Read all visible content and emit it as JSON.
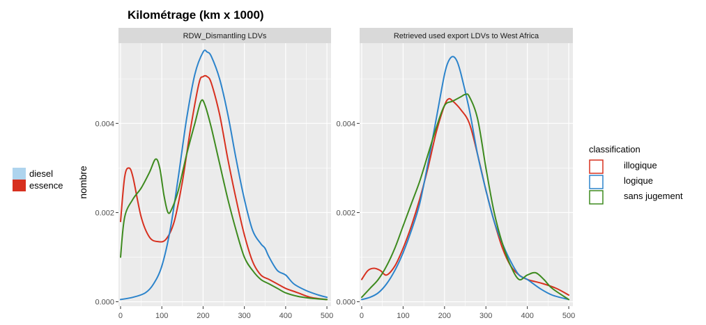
{
  "chart_data": {
    "type": "line",
    "title": "Kilométrage (km x 1000)",
    "ylabel": "nombre",
    "xlabel": "",
    "xlim": [
      -5,
      510
    ],
    "x_ticks": [
      0,
      100,
      200,
      300,
      400,
      500
    ],
    "x_tick_labels": [
      "0",
      "100",
      "200",
      "300",
      "400",
      "500"
    ],
    "grid": true,
    "colors": {
      "illogique": "#d7301f",
      "logique": "#2b83cb",
      "sans jugement": "#3d8a1e",
      "panel_bg": "#ebebeb",
      "strip_bg": "#d9d9d9",
      "grid": "#ffffff",
      "diesel": "#aed4ee",
      "essence": "#d7301f"
    },
    "fill_legend": {
      "items": [
        {
          "label": "diesel",
          "color": "#aed4ee"
        },
        {
          "label": "essence",
          "color": "#d7301f"
        }
      ]
    },
    "color_legend": {
      "title": "classification",
      "placement": "right",
      "items": [
        {
          "label": "illogique",
          "color": "#d7301f"
        },
        {
          "label": "logique",
          "color": "#2b83cb"
        },
        {
          "label": "sans jugement",
          "color": "#3d8a1e"
        }
      ]
    },
    "panels": [
      {
        "strip": "RDW_Dismantling LDVs",
        "ylim": [
          -0.0001,
          0.0058
        ],
        "y_ticks": [
          0,
          0.002,
          0.004
        ],
        "y_tick_labels": [
          "0.000",
          "0.002",
          "0.004"
        ],
        "series": [
          {
            "name": "illogique",
            "x": [
              0,
              10,
              20,
              30,
              50,
              70,
              90,
              110,
              130,
              150,
              170,
              190,
              200,
              210,
              220,
              240,
              260,
              280,
              300,
              320,
              340,
              360,
              380,
              400,
              430,
              460,
              500
            ],
            "y": [
              0.0018,
              0.0028,
              0.003,
              0.0028,
              0.0019,
              0.00145,
              0.00135,
              0.0014,
              0.0018,
              0.0027,
              0.0039,
              0.0049,
              0.00505,
              0.00505,
              0.0049,
              0.0042,
              0.0032,
              0.0023,
              0.0015,
              0.0009,
              0.0006,
              0.0005,
              0.0004,
              0.0003,
              0.0002,
              0.0001,
              5e-05
            ]
          },
          {
            "name": "logique",
            "x": [
              0,
              30,
              60,
              80,
              100,
              120,
              140,
              160,
              180,
              200,
              210,
              220,
              240,
              260,
              280,
              300,
              320,
              340,
              350,
              360,
              380,
              400,
              420,
              450,
              480,
              500
            ],
            "y": [
              5e-05,
              0.0001,
              0.0002,
              0.0004,
              0.0008,
              0.0016,
              0.0028,
              0.0041,
              0.0051,
              0.0056,
              0.0056,
              0.0055,
              0.005,
              0.0042,
              0.0032,
              0.0023,
              0.0016,
              0.0013,
              0.0012,
              0.001,
              0.0007,
              0.0006,
              0.0004,
              0.00025,
              0.00015,
              0.0001
            ]
          },
          {
            "name": "sans jugement",
            "x": [
              0,
              10,
              30,
              50,
              70,
              85,
              95,
              105,
              115,
              125,
              140,
              160,
              180,
              195,
              205,
              220,
              240,
              260,
              280,
              300,
              320,
              340,
              360,
              380,
              400,
              430,
              460,
              500
            ],
            "y": [
              0.001,
              0.0019,
              0.0023,
              0.00255,
              0.0029,
              0.0032,
              0.003,
              0.0024,
              0.002,
              0.0021,
              0.0025,
              0.0033,
              0.004,
              0.0045,
              0.0044,
              0.0039,
              0.0031,
              0.0023,
              0.0016,
              0.001,
              0.0007,
              0.0005,
              0.0004,
              0.0003,
              0.0002,
              0.00012,
              8e-05,
              5e-05
            ]
          }
        ]
      },
      {
        "strip": "Retrieved used export LDVs to West Africa",
        "ylim": [
          -0.0001,
          0.0058
        ],
        "y_ticks": [
          0,
          0.002,
          0.004
        ],
        "y_tick_labels": [
          "0.000",
          "0.002",
          "0.004"
        ],
        "series": [
          {
            "name": "illogique",
            "x": [
              0,
              15,
              30,
              45,
              60,
              80,
              100,
              120,
              140,
              160,
              180,
              200,
              210,
              220,
              240,
              260,
              280,
              300,
              320,
              340,
              360,
              380,
              400,
              420,
              440,
              470,
              500
            ],
            "y": [
              0.0005,
              0.0007,
              0.00075,
              0.0007,
              0.0006,
              0.0008,
              0.0012,
              0.0017,
              0.0023,
              0.003,
              0.0038,
              0.0044,
              0.00455,
              0.0045,
              0.0043,
              0.004,
              0.0033,
              0.0025,
              0.0018,
              0.0012,
              0.0008,
              0.0006,
              0.0005,
              0.00045,
              0.0004,
              0.0003,
              0.00015
            ]
          },
          {
            "name": "logique",
            "x": [
              0,
              20,
              40,
              60,
              80,
              100,
              120,
              140,
              160,
              180,
              200,
              210,
              220,
              230,
              240,
              260,
              280,
              300,
              320,
              340,
              360,
              380,
              400,
              430,
              460,
              500
            ],
            "y": [
              5e-05,
              0.0001,
              0.0002,
              0.0004,
              0.0007,
              0.0011,
              0.0016,
              0.0022,
              0.0031,
              0.0041,
              0.0051,
              0.0054,
              0.0055,
              0.0054,
              0.0051,
              0.0043,
              0.0033,
              0.0025,
              0.0018,
              0.0013,
              0.0009,
              0.0006,
              0.0005,
              0.0003,
              0.00015,
              5e-05
            ]
          },
          {
            "name": "sans jugement",
            "x": [
              0,
              20,
              40,
              60,
              80,
              100,
              120,
              140,
              160,
              180,
              200,
              220,
              240,
              250,
              260,
              280,
              300,
              320,
              340,
              360,
              380,
              400,
              420,
              440,
              460,
              500
            ],
            "y": [
              0.0001,
              0.0003,
              0.0005,
              0.0008,
              0.0012,
              0.0017,
              0.0022,
              0.0027,
              0.0033,
              0.0039,
              0.0044,
              0.0045,
              0.0046,
              0.00465,
              0.0046,
              0.0041,
              0.003,
              0.002,
              0.0013,
              0.0008,
              0.0005,
              0.0006,
              0.00065,
              0.0005,
              0.0003,
              5e-05
            ]
          }
        ]
      }
    ]
  }
}
